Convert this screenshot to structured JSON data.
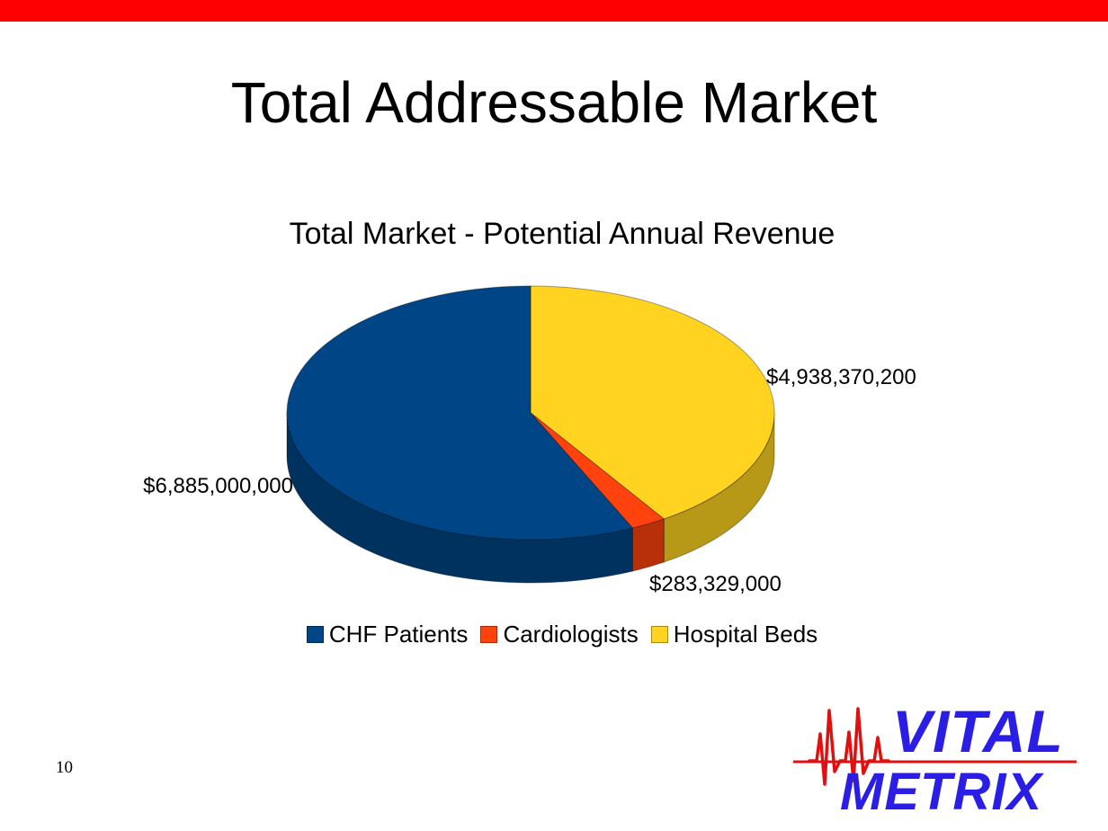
{
  "slide": {
    "title": "Total Addressable Market",
    "page_number": "10",
    "accent_color": "#ff0000"
  },
  "logo": {
    "line1": "VITAL",
    "line2": "METRIX",
    "text_color": "#2a1ee6",
    "pulse_color": "#e01010"
  },
  "chart_data": {
    "type": "pie",
    "style": "3d",
    "title": "Total Market - Potential Annual Revenue",
    "legend_position": "bottom",
    "categories": [
      "CHF Patients",
      "Cardiologists",
      "Hospital Beds"
    ],
    "values": [
      6885000000,
      283329000,
      4938370200
    ],
    "labels": [
      "$6,885,000,000",
      "$283,329,000",
      "$4,938,370,200"
    ],
    "colors": [
      "#004586",
      "#ff420e",
      "#ffd320"
    ]
  }
}
